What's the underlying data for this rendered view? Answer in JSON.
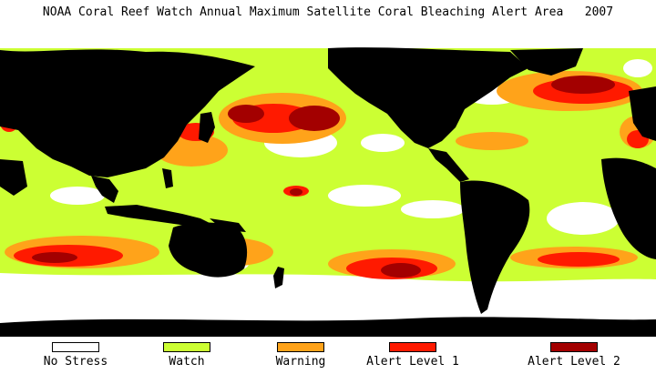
{
  "title": "NOAA Coral Reef Watch Annual Maximum Satellite Coral Bleaching Alert Area   2007",
  "colors": {
    "land": "#000000",
    "no_stress": "#ffffff",
    "watch": "#ccff33",
    "warning": "#ffa31a",
    "alert1": "#ff1a00",
    "alert2": "#a30000"
  },
  "legend": [
    {
      "label": "No Stress",
      "color": "#ffffff"
    },
    {
      "label": "Watch",
      "color": "#ccff33"
    },
    {
      "label": "Warning",
      "color": "#ffa31a"
    },
    {
      "label": "Alert Level 1",
      "color": "#ff1a00"
    },
    {
      "label": "Alert Level 2",
      "color": "#a30000"
    }
  ]
}
